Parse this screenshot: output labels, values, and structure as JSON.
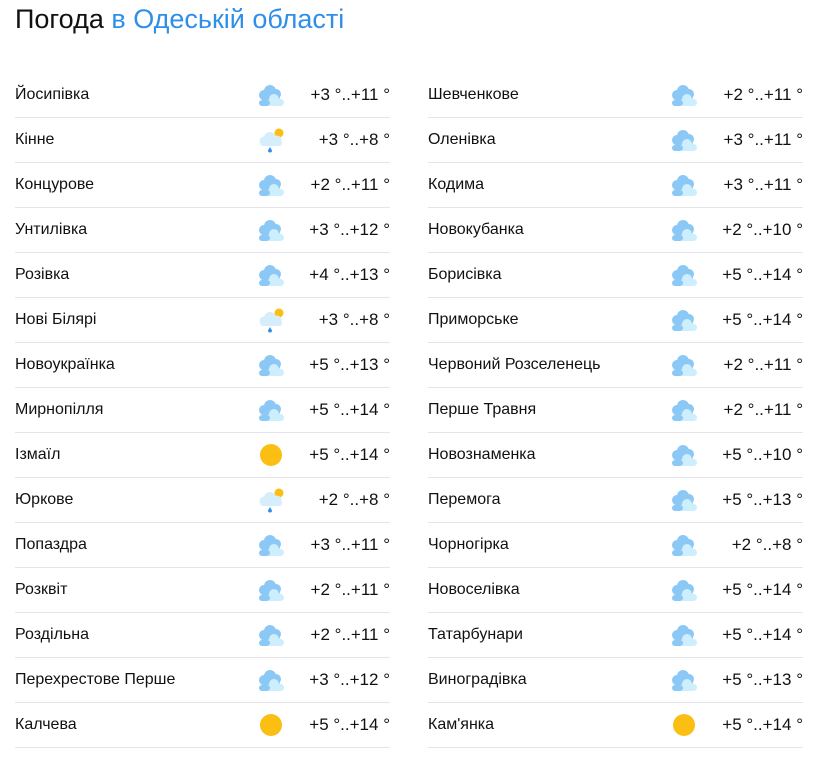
{
  "title": {
    "prefix": "Погода",
    "region": "в Одеській області"
  },
  "colors": {
    "accent": "#2f8fe8",
    "sun": "#fbbf14",
    "cloud": "#8cc8f6",
    "cloud_light": "#cdeefc"
  },
  "left": [
    {
      "name": "Йосипівка",
      "icon": "cloudy",
      "temp": "+3 °..+11 °"
    },
    {
      "name": "Кінне",
      "icon": "partly-cloudy-rain",
      "temp": "+3 °..+8 °"
    },
    {
      "name": "Концурове",
      "icon": "cloudy",
      "temp": "+2 °..+11 °"
    },
    {
      "name": "Унтилівка",
      "icon": "cloudy",
      "temp": "+3 °..+12 °"
    },
    {
      "name": "Розівка",
      "icon": "cloudy",
      "temp": "+4 °..+13 °"
    },
    {
      "name": "Нові Білярі",
      "icon": "partly-cloudy-rain",
      "temp": "+3 °..+8 °"
    },
    {
      "name": "Новоукраїнка",
      "icon": "cloudy",
      "temp": "+5 °..+13 °"
    },
    {
      "name": "Мирнопілля",
      "icon": "cloudy",
      "temp": "+5 °..+14 °"
    },
    {
      "name": "Ізмаїл",
      "icon": "sunny",
      "temp": "+5 °..+14 °"
    },
    {
      "name": "Юркове",
      "icon": "partly-cloudy-rain",
      "temp": "+2 °..+8 °"
    },
    {
      "name": "Попаздра",
      "icon": "cloudy",
      "temp": "+3 °..+11 °"
    },
    {
      "name": "Розквіт",
      "icon": "cloudy",
      "temp": "+2 °..+11 °"
    },
    {
      "name": "Роздільна",
      "icon": "cloudy",
      "temp": "+2 °..+11 °"
    },
    {
      "name": "Перехрестове Перше",
      "icon": "cloudy",
      "temp": "+3 °..+12 °"
    },
    {
      "name": "Калчева",
      "icon": "sunny",
      "temp": "+5 °..+14 °"
    }
  ],
  "right": [
    {
      "name": "Шевченкове",
      "icon": "cloudy",
      "temp": "+2 °..+11 °"
    },
    {
      "name": "Оленівка",
      "icon": "cloudy",
      "temp": "+3 °..+11 °"
    },
    {
      "name": "Кодима",
      "icon": "cloudy",
      "temp": "+3 °..+11 °"
    },
    {
      "name": "Новокубанка",
      "icon": "cloudy",
      "temp": "+2 °..+10 °"
    },
    {
      "name": "Борисівка",
      "icon": "cloudy",
      "temp": "+5 °..+14 °"
    },
    {
      "name": "Приморське",
      "icon": "cloudy",
      "temp": "+5 °..+14 °"
    },
    {
      "name": "Червоний Розселенець",
      "icon": "cloudy",
      "temp": "+2 °..+11 °"
    },
    {
      "name": "Перше Травня",
      "icon": "cloudy",
      "temp": "+2 °..+11 °"
    },
    {
      "name": "Новознаменка",
      "icon": "cloudy",
      "temp": "+5 °..+10 °"
    },
    {
      "name": "Перемога",
      "icon": "cloudy",
      "temp": "+5 °..+13 °"
    },
    {
      "name": "Чорногірка",
      "icon": "cloudy",
      "temp": "+2 °..+8 °"
    },
    {
      "name": "Новоселівка",
      "icon": "cloudy",
      "temp": "+5 °..+14 °"
    },
    {
      "name": "Татарбунари",
      "icon": "cloudy",
      "temp": "+5 °..+14 °"
    },
    {
      "name": "Виноградівка",
      "icon": "cloudy",
      "temp": "+5 °..+13 °"
    },
    {
      "name": "Кам'янка",
      "icon": "sunny",
      "temp": "+5 °..+14 °"
    }
  ]
}
